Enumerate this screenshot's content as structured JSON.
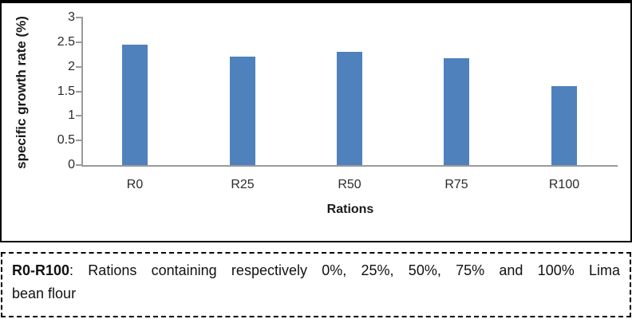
{
  "chart_data": {
    "type": "bar",
    "title": "",
    "categories": [
      "R0",
      "R25",
      "R50",
      "R75",
      "R100"
    ],
    "values": [
      2.45,
      2.2,
      2.3,
      2.17,
      1.6
    ],
    "xlabel": "Rations",
    "ylabel": "specific growth rate (%)",
    "ylim": [
      0,
      3
    ],
    "yticks": [
      0,
      0.5,
      1,
      1.5,
      2,
      2.5,
      3
    ],
    "grid": false,
    "legend": false,
    "bar_color": "#4f81bd",
    "axis_color": "#9a9a9a"
  },
  "caption": {
    "term": "R0-R100",
    "line1_rest": ": Rations containing respectively 0%, 25%, 50%, 75% and 100% Lima",
    "line2": "bean flour",
    "full_text": "R0-R100: Rations containing respectively 0%, 25%, 50%, 75% and 100% Lima bean flour"
  }
}
